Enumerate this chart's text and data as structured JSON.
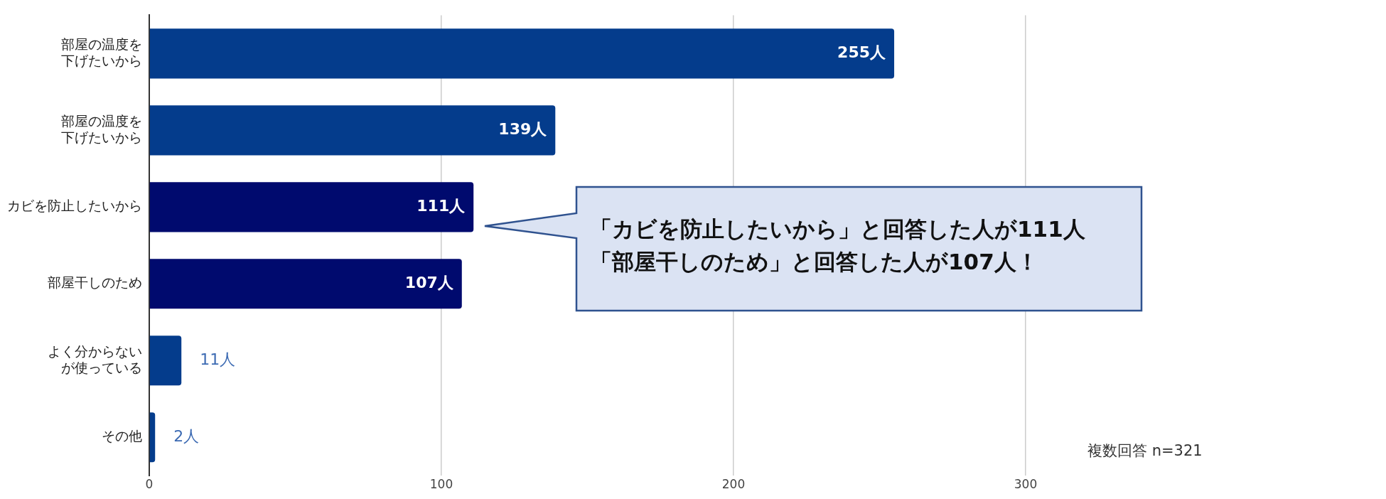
{
  "chart_data": {
    "type": "bar",
    "orientation": "horizontal",
    "categories": [
      "部屋の温度を下げたいから",
      "部屋の温度を下げたいから",
      "カビを防止したいから",
      "部屋干しのため",
      "よく分からないが使っている",
      "その他"
    ],
    "values": [
      255,
      139,
      111,
      107,
      11,
      2
    ],
    "colors": [
      "#043c8c",
      "#043c8c",
      "#000a6e",
      "#000a6e",
      "#043c8c",
      "#043c8c"
    ],
    "value_labels": [
      "255人",
      "139人",
      "111人",
      "107人",
      "11人",
      "2人"
    ],
    "xlim": [
      0,
      300
    ],
    "xticks": [
      0,
      100,
      200,
      300
    ],
    "grid": "x",
    "legend": false,
    "annotations": [
      "「カビを防止したいから」と回答した人が111人",
      "「部屋干しのため」と回答した人が107人！",
      "複数回答 n=321"
    ]
  }
}
